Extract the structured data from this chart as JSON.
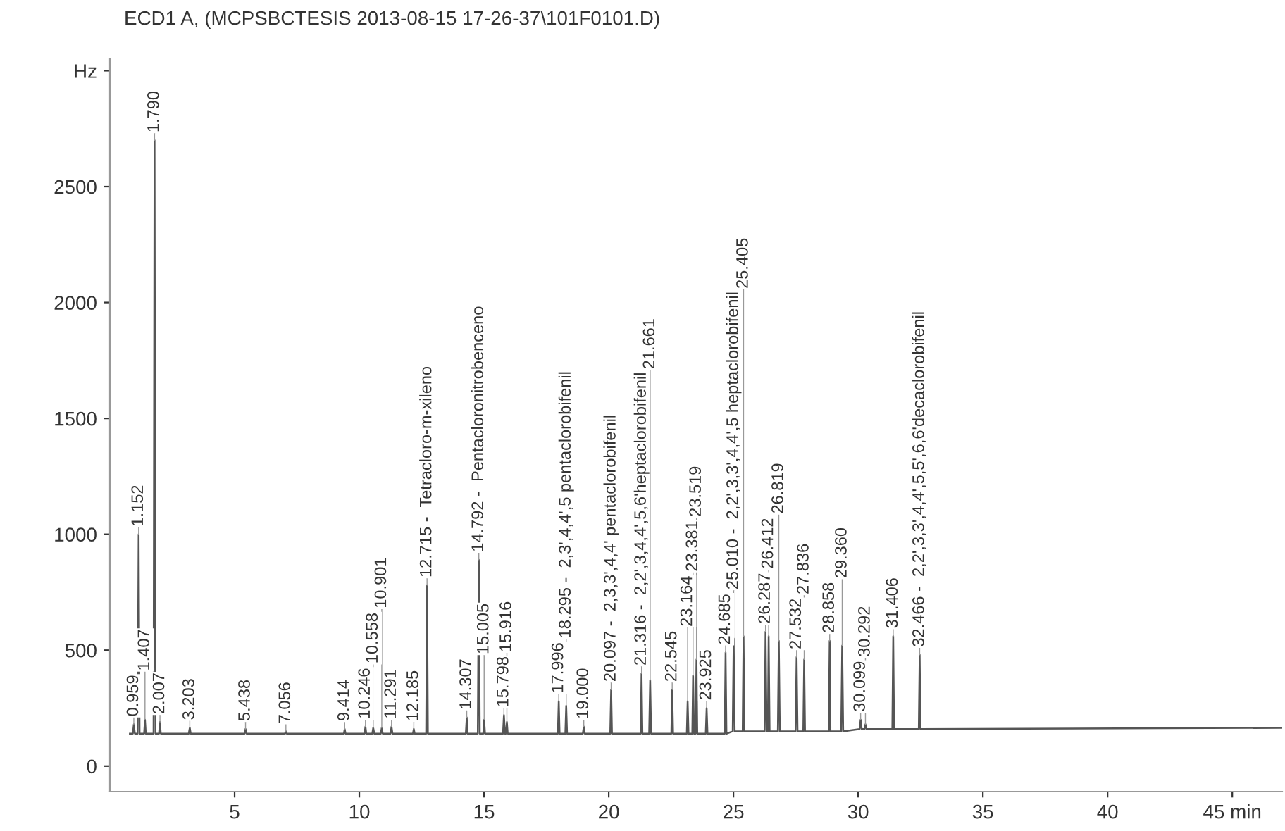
{
  "chart_data": {
    "type": "line",
    "title": "ECD1 A, (MCPSBCTESIS 2013-08-15 17-26-37\\101F0101.D)",
    "xlim": [
      0,
      47
    ],
    "xticks": [
      5,
      10,
      15,
      20,
      25,
      30,
      35,
      40,
      {
        "value": 45,
        "label": "45 min"
      }
    ],
    "ylim": [
      -110,
      3050
    ],
    "yticks": [
      0,
      500,
      1000,
      1500,
      2000,
      2500,
      {
        "value": 3000,
        "label": "Hz"
      }
    ],
    "grid": false,
    "legend": false,
    "marker": "none",
    "line_style": "solid",
    "series": [
      {
        "color": "#555555",
        "x": [
          0.8,
          0.92,
          0.959,
          1.0,
          1.11,
          1.152,
          1.19,
          1.37,
          1.407,
          1.44,
          1.75,
          1.79,
          1.83,
          1.97,
          2.007,
          2.04,
          3.16,
          3.203,
          3.24,
          5.4,
          5.438,
          5.48,
          7.02,
          7.056,
          7.09,
          9.38,
          9.414,
          9.45,
          10.21,
          10.246,
          10.28,
          10.52,
          10.558,
          10.6,
          10.86,
          10.901,
          10.94,
          11.25,
          11.291,
          11.33,
          12.15,
          12.185,
          12.22,
          12.68,
          12.715,
          12.75,
          14.27,
          14.307,
          14.34,
          14.75,
          14.792,
          14.83,
          14.97,
          15.005,
          15.04,
          15.76,
          15.798,
          15.84,
          15.88,
          15.916,
          15.95,
          17.96,
          17.996,
          18.03,
          18.26,
          18.295,
          18.33,
          18.96,
          19.0,
          19.04,
          20.06,
          20.097,
          20.13,
          21.28,
          21.316,
          21.35,
          21.62,
          21.661,
          21.7,
          22.51,
          22.545,
          22.58,
          23.13,
          23.164,
          23.2,
          23.35,
          23.381,
          23.42,
          23.48,
          23.519,
          23.55,
          23.89,
          23.925,
          23.96,
          24.65,
          24.685,
          24.72,
          24.97,
          25.01,
          25.05,
          25.37,
          25.405,
          25.44,
          26.25,
          26.287,
          26.33,
          26.38,
          26.412,
          26.45,
          26.78,
          26.819,
          26.86,
          27.49,
          27.532,
          27.57,
          27.8,
          27.836,
          27.87,
          28.82,
          28.858,
          28.89,
          29.32,
          29.36,
          29.4,
          30.06,
          30.099,
          30.14,
          30.25,
          30.292,
          30.33,
          31.37,
          31.406,
          31.44,
          32.43,
          32.466,
          32.5,
          47
        ],
        "values": [
          140,
          140,
          180,
          140,
          140,
          1000,
          140,
          140,
          200,
          140,
          140,
          2700,
          140,
          140,
          190,
          140,
          140,
          165,
          140,
          140,
          160,
          140,
          140,
          150,
          140,
          140,
          160,
          140,
          140,
          170,
          140,
          140,
          165,
          140,
          140,
          165,
          140,
          140,
          170,
          140,
          140,
          160,
          140,
          140,
          780,
          140,
          140,
          210,
          140,
          140,
          890,
          140,
          140,
          200,
          140,
          140,
          220,
          140,
          140,
          190,
          140,
          140,
          280,
          140,
          140,
          260,
          140,
          140,
          170,
          140,
          140,
          330,
          140,
          140,
          400,
          140,
          140,
          370,
          140,
          140,
          330,
          140,
          140,
          280,
          140,
          140,
          390,
          140,
          140,
          460,
          140,
          140,
          250,
          140,
          140,
          490,
          140,
          150,
          550,
          150,
          150,
          560,
          150,
          150,
          580,
          150,
          150,
          560,
          150,
          150,
          540,
          150,
          150,
          470,
          150,
          150,
          460,
          150,
          150,
          540,
          150,
          150,
          520,
          150,
          160,
          200,
          160,
          160,
          180,
          160,
          160,
          560,
          160,
          160,
          480,
          160,
          165
        ]
      }
    ],
    "annotations": [
      {
        "text": "0.959",
        "x": 0.959,
        "y": 180
      },
      {
        "text": "1.152",
        "x": 1.152,
        "y": 1000
      },
      {
        "text": "1.407",
        "x": 1.407,
        "y": 200
      },
      {
        "text": "1.790",
        "x": 1.79,
        "y": 2700
      },
      {
        "text": "2.007",
        "x": 2.007,
        "y": 190
      },
      {
        "text": "3.203",
        "x": 3.203,
        "y": 165
      },
      {
        "text": "5.438",
        "x": 5.438,
        "y": 160
      },
      {
        "text": "7.056",
        "x": 7.056,
        "y": 150
      },
      {
        "text": "9.414",
        "x": 9.414,
        "y": 160
      },
      {
        "text": "10.246",
        "x": 10.246,
        "y": 170
      },
      {
        "text": "10.558",
        "x": 10.558,
        "y": 165
      },
      {
        "text": "10.901",
        "x": 10.901,
        "y": 165
      },
      {
        "text": "11.291",
        "x": 11.291,
        "y": 170
      },
      {
        "text": "12.185",
        "x": 12.185,
        "y": 160
      },
      {
        "text": "12.715 -  Tetracloro-m-xileno",
        "x": 12.715,
        "y": 780
      },
      {
        "text": "14.307",
        "x": 14.307,
        "y": 210
      },
      {
        "text": "14.792 -  Pentacloronitrobenceno",
        "x": 14.792,
        "y": 890
      },
      {
        "text": "15.005",
        "x": 15.005,
        "y": 200
      },
      {
        "text": "15.798",
        "x": 15.798,
        "y": 220
      },
      {
        "text": "15.916",
        "x": 15.916,
        "y": 190
      },
      {
        "text": "17.996",
        "x": 17.996,
        "y": 280
      },
      {
        "text": "18.295 -  2,3',4,4',5 pentaclorobifenil",
        "x": 18.295,
        "y": 260
      },
      {
        "text": "19.000",
        "x": 19.0,
        "y": 170
      },
      {
        "text": "20.097 -  2,3,3',4,4' pentaclorobifenil",
        "x": 20.097,
        "y": 330
      },
      {
        "text": "21.316 -  2,2',3,4,4',5,6'heptaclorobifenil",
        "x": 21.316,
        "y": 400
      },
      {
        "text": "21.661",
        "x": 21.661,
        "y": 370
      },
      {
        "text": "22.545",
        "x": 22.545,
        "y": 330
      },
      {
        "text": "23.164",
        "x": 23.164,
        "y": 280
      },
      {
        "text": "23.381",
        "x": 23.381,
        "y": 390
      },
      {
        "text": "23.519",
        "x": 23.519,
        "y": 460
      },
      {
        "text": "23.925",
        "x": 23.925,
        "y": 250
      },
      {
        "text": "24.685",
        "x": 24.685,
        "y": 490
      },
      {
        "text": "25.010 -  2,2',3,3',4,4',5 heptaclorobifenil",
        "x": 25.01,
        "y": 550
      },
      {
        "text": "25.405",
        "x": 25.405,
        "y": 560
      },
      {
        "text": "26.287",
        "x": 26.287,
        "y": 580
      },
      {
        "text": "26.412",
        "x": 26.412,
        "y": 560
      },
      {
        "text": "26.819",
        "x": 26.819,
        "y": 540
      },
      {
        "text": "27.532",
        "x": 27.532,
        "y": 470
      },
      {
        "text": "27.836",
        "x": 27.836,
        "y": 460
      },
      {
        "text": "28.858",
        "x": 28.858,
        "y": 540
      },
      {
        "text": "29.360",
        "x": 29.36,
        "y": 520
      },
      {
        "text": "30.099",
        "x": 30.099,
        "y": 200
      },
      {
        "text": "30.292",
        "x": 30.292,
        "y": 180
      },
      {
        "text": "31.406",
        "x": 31.406,
        "y": 560
      },
      {
        "text": "32.466 -  2,2',3,3',4,4',5,5',6,6'decaclorobifenil",
        "x": 32.466,
        "y": 480
      }
    ]
  }
}
